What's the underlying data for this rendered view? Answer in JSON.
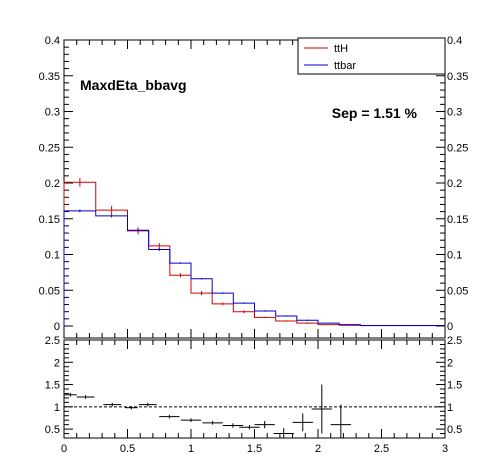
{
  "chart_data": [
    {
      "type": "histogram",
      "title": "MaxdEta_bbavg",
      "annotation": "Sep = 1.51 %",
      "xlim": [
        0,
        3
      ],
      "ylim": [
        0,
        0.4
      ],
      "x_ticks": [
        "0",
        "0.5",
        "1",
        "1.5",
        "2",
        "2.5",
        "3"
      ],
      "y_ticks": [
        "0",
        "0.05",
        "0.1",
        "0.15",
        "0.2",
        "0.25",
        "0.3",
        "0.35",
        "0.4"
      ],
      "y_tick_values": [
        0,
        0.05,
        0.1,
        0.15,
        0.2,
        0.25,
        0.3,
        0.35,
        0.4
      ],
      "bin_edges": [
        0,
        0.25,
        0.5,
        0.6667,
        0.8333,
        1.0,
        1.1667,
        1.3333,
        1.5,
        1.6667,
        1.8333,
        2.0,
        2.1667,
        2.3333,
        3.0
      ],
      "series": [
        {
          "name": "ttH",
          "color": "#d40000",
          "values": [
            0.201,
            0.162,
            0.133,
            0.112,
            0.071,
            0.046,
            0.031,
            0.02,
            0.012,
            0.007,
            0.004,
            0.002,
            0.001,
            0.0005
          ],
          "errors": [
            0.006,
            0.006,
            0.005,
            0.004,
            0.003,
            0.003,
            0.002,
            0.002,
            0.001,
            0.001,
            0.001,
            0.0005,
            0.0005,
            0.0003
          ]
        },
        {
          "name": "ttbar",
          "color": "#0000cc",
          "values": [
            0.161,
            0.154,
            0.134,
            0.107,
            0.088,
            0.066,
            0.046,
            0.032,
            0.021,
            0.014,
            0.008,
            0.004,
            0.002,
            0.0007
          ],
          "errors": [
            0.002,
            0.002,
            0.002,
            0.002,
            0.001,
            0.001,
            0.001,
            0.001,
            0.001,
            0.001,
            0.001,
            0.0005,
            0.0005,
            0.0003
          ]
        }
      ],
      "legend_position": "top-right"
    },
    {
      "type": "ratio",
      "xlim": [
        0,
        3
      ],
      "ylim": [
        0.3,
        2.5
      ],
      "reference_line": 1,
      "x_ticks": [
        "0",
        "0.5",
        "1",
        "1.5",
        "2",
        "2.5",
        "3"
      ],
      "y_ticks": [
        "0.5",
        "1",
        "1.5",
        "2",
        "2.5"
      ],
      "y_tick_values": [
        0.5,
        1,
        1.5,
        2,
        2.5
      ],
      "points": [
        {
          "x": 0.05,
          "xerr": 0.05,
          "y": 1.27,
          "yerr": 0.04
        },
        {
          "x": 0.17,
          "xerr": 0.07,
          "y": 1.22,
          "yerr": 0.04
        },
        {
          "x": 0.38,
          "xerr": 0.07,
          "y": 1.05,
          "yerr": 0.04
        },
        {
          "x": 0.53,
          "xerr": 0.05,
          "y": 0.98,
          "yerr": 0.04
        },
        {
          "x": 0.66,
          "xerr": 0.07,
          "y": 1.05,
          "yerr": 0.04
        },
        {
          "x": 0.83,
          "xerr": 0.08,
          "y": 0.78,
          "yerr": 0.04
        },
        {
          "x": 1.0,
          "xerr": 0.08,
          "y": 0.7,
          "yerr": 0.04
        },
        {
          "x": 1.17,
          "xerr": 0.08,
          "y": 0.64,
          "yerr": 0.04
        },
        {
          "x": 1.33,
          "xerr": 0.08,
          "y": 0.58,
          "yerr": 0.05
        },
        {
          "x": 1.46,
          "xerr": 0.08,
          "y": 0.54,
          "yerr": 0.05
        },
        {
          "x": 1.58,
          "xerr": 0.08,
          "y": 0.6,
          "yerr": 0.08
        },
        {
          "x": 1.73,
          "xerr": 0.08,
          "y": 0.4,
          "yerr": 0.12
        },
        {
          "x": 1.88,
          "xerr": 0.08,
          "y": 0.65,
          "yerr": 0.2
        },
        {
          "x": 2.03,
          "xerr": 0.08,
          "y": 0.95,
          "yerr": 0.55
        },
        {
          "x": 2.18,
          "xerr": 0.08,
          "y": 0.6,
          "yerr": 0.45
        }
      ]
    }
  ]
}
